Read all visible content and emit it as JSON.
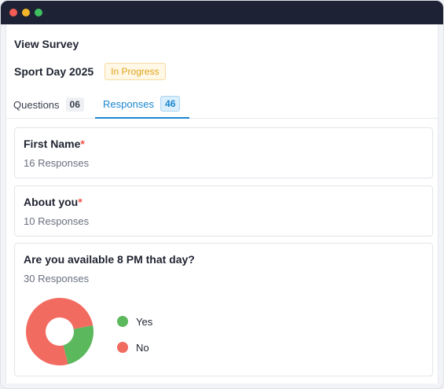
{
  "window": {
    "controls": [
      "close",
      "minimize",
      "maximize"
    ],
    "control_colors": [
      "#f25c54",
      "#f5b52b",
      "#3fbf5f"
    ]
  },
  "page": {
    "title": "View Survey"
  },
  "survey": {
    "name": "Sport Day 2025",
    "status": "In Progress"
  },
  "tabs": [
    {
      "label": "Questions",
      "count": "06",
      "active": false
    },
    {
      "label": "Responses",
      "count": "46",
      "active": true
    }
  ],
  "questions": [
    {
      "title": "First Name",
      "required": "*",
      "responses": "16 Responses"
    },
    {
      "title": "About you",
      "required": "*",
      "responses": "10 Responses"
    },
    {
      "title": "Are you available 8 PM that day?",
      "responses": "30 Responses"
    }
  ],
  "chart_data": {
    "type": "pie",
    "categories": [
      "Yes",
      "No"
    ],
    "values": [
      24,
      76
    ],
    "colors": [
      "#5cb85c",
      "#f26b61"
    ],
    "legend_position": "right"
  }
}
